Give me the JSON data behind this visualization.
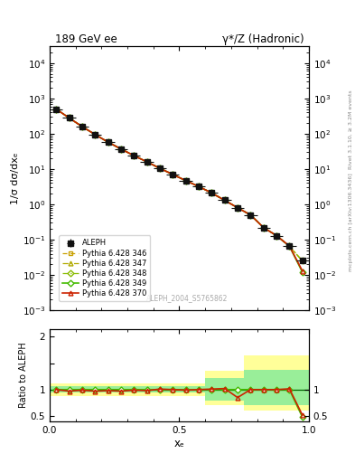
{
  "title_left": "189 GeV ee",
  "title_right": "γ*/Z (Hadronic)",
  "ylabel_main": "1/σ dσ/dxₑ",
  "ylabel_ratio": "Ratio to ALEPH",
  "xlabel": "xₑ",
  "right_label_top": "Rivet 3.1.10, ≥ 3.2M events",
  "right_label_bottom": "mcplots.cern.ch [arXiv:1306.3436]",
  "watermark": "ALEPH_2004_S5765862",
  "aleph_x": [
    0.025,
    0.075,
    0.125,
    0.175,
    0.225,
    0.275,
    0.325,
    0.375,
    0.425,
    0.475,
    0.525,
    0.575,
    0.625,
    0.675,
    0.725,
    0.775,
    0.825,
    0.875,
    0.925,
    0.975
  ],
  "aleph_y": [
    500,
    280,
    160,
    95,
    58,
    37,
    24,
    16,
    10.5,
    7.0,
    4.7,
    3.2,
    2.1,
    1.3,
    0.8,
    0.5,
    0.22,
    0.13,
    0.065,
    0.025
  ],
  "aleph_xerr": [
    0.025,
    0.025,
    0.025,
    0.025,
    0.025,
    0.025,
    0.025,
    0.025,
    0.025,
    0.025,
    0.025,
    0.025,
    0.025,
    0.025,
    0.025,
    0.025,
    0.025,
    0.025,
    0.025,
    0.025
  ],
  "aleph_yerr": [
    10,
    5,
    3,
    2,
    1,
    0.7,
    0.5,
    0.3,
    0.2,
    0.15,
    0.1,
    0.08,
    0.05,
    0.04,
    0.02,
    0.015,
    0.008,
    0.005,
    0.003,
    0.002
  ],
  "mc_x": [
    0.025,
    0.075,
    0.125,
    0.175,
    0.225,
    0.275,
    0.325,
    0.375,
    0.425,
    0.475,
    0.525,
    0.575,
    0.625,
    0.675,
    0.725,
    0.775,
    0.825,
    0.875,
    0.925,
    0.975
  ],
  "pythia346_y": [
    500,
    280,
    160,
    95,
    58,
    37,
    24,
    16,
    10.5,
    7.0,
    4.7,
    3.2,
    2.1,
    1.3,
    0.8,
    0.5,
    0.22,
    0.13,
    0.065,
    0.025
  ],
  "pythia347_y": [
    500,
    280,
    160,
    95,
    58,
    37,
    24,
    16,
    10.5,
    7.0,
    4.7,
    3.2,
    2.1,
    1.3,
    0.8,
    0.5,
    0.22,
    0.13,
    0.065,
    0.025
  ],
  "pythia348_y": [
    500,
    280,
    160,
    95,
    58,
    37,
    24,
    16,
    10.5,
    7.0,
    4.7,
    3.2,
    2.1,
    1.3,
    0.8,
    0.5,
    0.22,
    0.13,
    0.065,
    0.025
  ],
  "pythia349_y": [
    500,
    280,
    160,
    95,
    58,
    37,
    24,
    16,
    10.5,
    7.0,
    4.7,
    3.2,
    2.1,
    1.3,
    0.8,
    0.5,
    0.22,
    0.13,
    0.065,
    0.012
  ],
  "pythia370_y": [
    500,
    280,
    160,
    95,
    58,
    37,
    24,
    16,
    10.5,
    7.0,
    4.7,
    3.2,
    2.1,
    1.3,
    0.8,
    0.5,
    0.22,
    0.13,
    0.066,
    0.013
  ],
  "ratio349_y": [
    1.0,
    1.0,
    1.0,
    1.0,
    1.0,
    1.0,
    1.0,
    1.0,
    1.0,
    1.0,
    1.0,
    1.0,
    1.0,
    1.0,
    1.0,
    1.0,
    1.0,
    1.0,
    1.0,
    0.48
  ],
  "ratio370_y": [
    1.0,
    1.0,
    1.0,
    1.0,
    1.0,
    1.0,
    1.0,
    1.0,
    1.0,
    1.0,
    1.0,
    1.0,
    1.0,
    1.0,
    1.0,
    1.0,
    1.0,
    1.0,
    1.015,
    0.52
  ],
  "ratio_all_x": [
    0.025,
    0.075,
    0.125,
    0.175,
    0.225,
    0.275,
    0.325,
    0.375,
    0.425,
    0.475,
    0.525,
    0.575,
    0.625,
    0.675,
    0.725,
    0.775,
    0.825,
    0.875,
    0.925,
    0.975
  ],
  "ratio_all_y": [
    1.0,
    0.97,
    0.99,
    0.97,
    0.98,
    0.97,
    0.99,
    0.98,
    1.01,
    1.0,
    0.99,
    1.0,
    1.01,
    1.02,
    0.85,
    1.0,
    1.0,
    1.0,
    1.015,
    0.52
  ],
  "ratio_band_x_edges": [
    0.0,
    0.05,
    0.1,
    0.15,
    0.2,
    0.25,
    0.3,
    0.35,
    0.4,
    0.45,
    0.5,
    0.55,
    0.6,
    0.65,
    0.7,
    0.75,
    0.8,
    0.85,
    0.9,
    0.95,
    1.0
  ],
  "ratio_band_yellow_lo": [
    0.88,
    0.88,
    0.88,
    0.88,
    0.88,
    0.88,
    0.88,
    0.88,
    0.88,
    0.88,
    0.88,
    0.88,
    0.7,
    0.7,
    0.7,
    0.6,
    0.6,
    0.6,
    0.6,
    0.6
  ],
  "ratio_band_yellow_hi": [
    1.12,
    1.12,
    1.12,
    1.12,
    1.12,
    1.12,
    1.12,
    1.12,
    1.12,
    1.12,
    1.12,
    1.12,
    1.35,
    1.35,
    1.35,
    1.65,
    1.65,
    1.65,
    1.65,
    1.65
  ],
  "ratio_band_green_lo": [
    0.94,
    0.94,
    0.94,
    0.94,
    0.94,
    0.94,
    0.94,
    0.94,
    0.94,
    0.94,
    0.94,
    0.94,
    0.8,
    0.8,
    0.8,
    0.7,
    0.7,
    0.7,
    0.7,
    0.7
  ],
  "ratio_band_green_hi": [
    1.06,
    1.06,
    1.06,
    1.06,
    1.06,
    1.06,
    1.06,
    1.06,
    1.06,
    1.06,
    1.06,
    1.06,
    1.22,
    1.22,
    1.22,
    1.38,
    1.38,
    1.38,
    1.38,
    1.38
  ],
  "color_346": "#c8a000",
  "color_347": "#b0aa00",
  "color_348": "#88bb00",
  "color_349": "#44bb00",
  "color_370": "#cc2200",
  "color_aleph": "#111111",
  "color_yellow_band": "#ffff99",
  "color_green_band": "#99ee99",
  "ylim_main": [
    0.001,
    30000.0
  ],
  "ylim_ratio": [
    0.4,
    2.15
  ],
  "xlim": [
    0.0,
    1.0
  ]
}
